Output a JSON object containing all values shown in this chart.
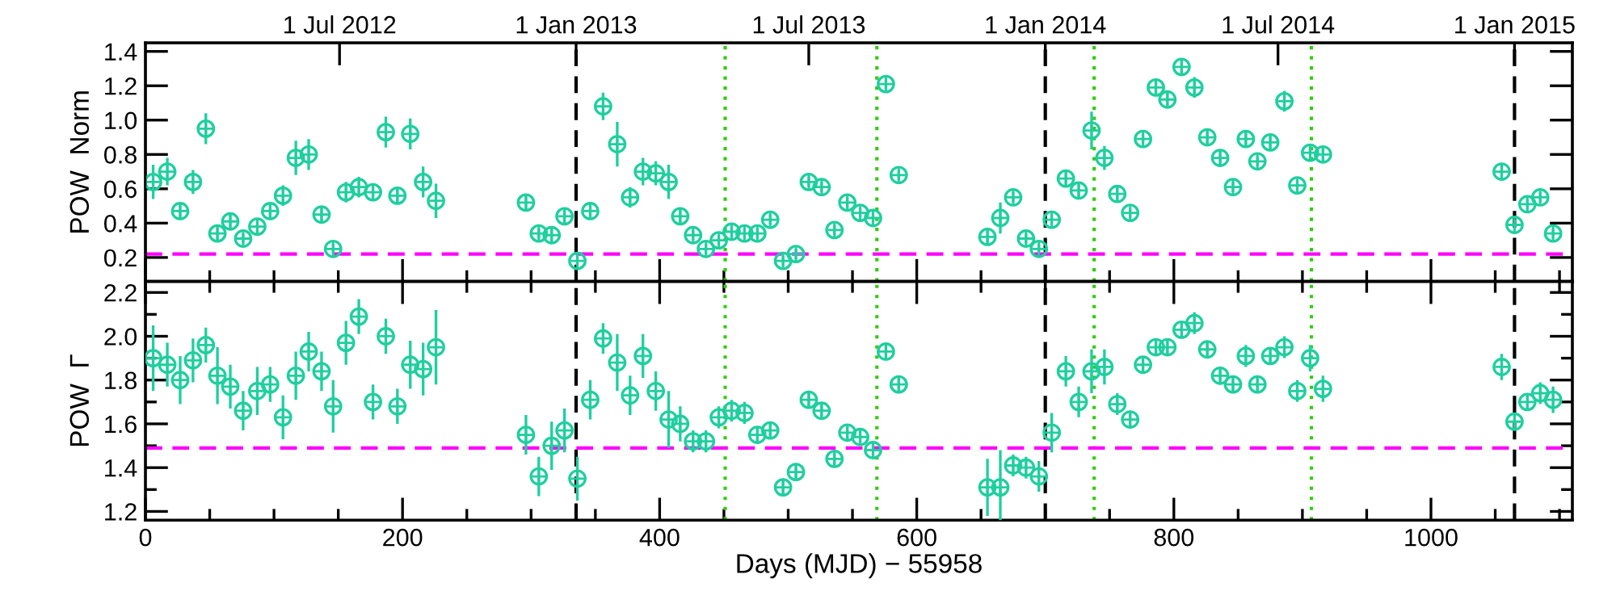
{
  "chart_data": [
    {
      "type": "scatter",
      "ylabel": "POW  Norm",
      "marker": "circle",
      "grid": false,
      "tick_labels": "y",
      "xlim": [
        0,
        1110
      ],
      "xticks": [
        0,
        200,
        400,
        600,
        800,
        1000
      ],
      "x2lim": [
        "2012-02-01",
        "2015-02-15"
      ],
      "x2ticks": [
        {
          "value": "2012-07-01",
          "label": "1 Jul 2012"
        },
        {
          "value": "2013-01-01",
          "label": "1 Jan 2013"
        },
        {
          "value": "2013-07-01",
          "label": "1 Jul 2013"
        },
        {
          "value": "2014-01-01",
          "label": "1 Jan 2014"
        },
        {
          "value": "2014-07-01",
          "label": "1 Jul 2014"
        },
        {
          "value": "2015-01-01",
          "label": "1 Jan 2015"
        }
      ],
      "ylim": [
        0.06,
        1.45
      ],
      "yticks": [
        0.2,
        0.4,
        0.6,
        0.8,
        {
          "value": 1,
          "label": "1.0"
        },
        1.2,
        1.4
      ],
      "ref_lines": [
        {
          "axis": "x",
          "value": 335,
          "color": "#000000",
          "line_style": "dashed"
        },
        {
          "axis": "x",
          "value": 700,
          "color": "#000000",
          "line_style": "dashed"
        },
        {
          "axis": "x",
          "value": 1065,
          "color": "#000000",
          "line_style": "dashed"
        },
        {
          "axis": "x",
          "value": 451,
          "color": "#33cc11",
          "line_style": "dotted"
        },
        {
          "axis": "x",
          "value": 569,
          "color": "#33cc11",
          "line_style": "dotted"
        },
        {
          "axis": "x",
          "value": 738,
          "color": "#33cc11",
          "line_style": "dotted"
        },
        {
          "axis": "x",
          "value": 907,
          "color": "#33cc11",
          "line_style": "dotted"
        },
        {
          "axis": "y",
          "value": 0.22,
          "color": "#ff00ff",
          "line_style": "dashed"
        }
      ],
      "series": [
        {
          "color": "#1fcf9f",
          "x": [
            6,
            17,
            27,
            37,
            47,
            56,
            66,
            76,
            87,
            97,
            107,
            117,
            127,
            137,
            146,
            156,
            166,
            177,
            187,
            196,
            206,
            216,
            226,
            296,
            306,
            316,
            326,
            336,
            346,
            356,
            367,
            377,
            387,
            397,
            407,
            416,
            426,
            436,
            446,
            456,
            466,
            476,
            486,
            496,
            506,
            516,
            526,
            536,
            546,
            556,
            566,
            576,
            586,
            655,
            665,
            675,
            685,
            695,
            705,
            716,
            726,
            736,
            746,
            756,
            766,
            776,
            786,
            795,
            806,
            816,
            826,
            836,
            846,
            856,
            865,
            875,
            886,
            896,
            906,
            916,
            1055,
            1065,
            1075,
            1085,
            1095
          ],
          "values": [
            0.64,
            0.7,
            0.47,
            0.64,
            0.95,
            0.34,
            0.41,
            0.31,
            0.38,
            0.47,
            0.56,
            0.78,
            0.8,
            0.45,
            0.25,
            0.58,
            0.61,
            0.58,
            0.93,
            0.56,
            0.92,
            0.64,
            0.53,
            0.52,
            0.34,
            0.33,
            0.44,
            0.18,
            0.47,
            1.08,
            0.86,
            0.55,
            0.7,
            0.69,
            0.64,
            0.44,
            0.33,
            0.25,
            0.3,
            0.35,
            0.34,
            0.34,
            0.42,
            0.18,
            0.22,
            0.64,
            0.61,
            0.36,
            0.52,
            0.46,
            0.43,
            1.21,
            0.68,
            0.32,
            0.43,
            0.55,
            0.31,
            0.25,
            0.42,
            0.66,
            0.59,
            0.94,
            0.78,
            0.57,
            0.46,
            0.89,
            1.19,
            1.12,
            1.31,
            1.19,
            0.9,
            0.78,
            0.61,
            0.89,
            0.76,
            0.87,
            1.11,
            0.62,
            0.81,
            0.8,
            0.7,
            0.39,
            0.51,
            0.55,
            0.34
          ],
          "errors": [
            0.1,
            0.08,
            0.05,
            0.07,
            0.09,
            0.04,
            0.04,
            0.03,
            0.04,
            0.04,
            0.06,
            0.1,
            0.09,
            0.04,
            0.03,
            0.06,
            0.06,
            0.05,
            0.09,
            0.05,
            0.09,
            0.09,
            0.1,
            0.05,
            0.03,
            0.04,
            0.05,
            0.03,
            0.05,
            0.08,
            0.13,
            0.06,
            0.08,
            0.07,
            0.1,
            0.04,
            0.03,
            0.03,
            0.03,
            0.03,
            0.03,
            0.03,
            0.03,
            0.03,
            0.03,
            0.03,
            0.03,
            0.03,
            0.03,
            0.03,
            0.03,
            0.03,
            0.03,
            0.05,
            0.09,
            0.03,
            0.03,
            0.03,
            0.03,
            0.05,
            0.04,
            0.11,
            0.07,
            0.04,
            0.03,
            0.03,
            0.04,
            0.04,
            0.05,
            0.06,
            0.04,
            0.04,
            0.03,
            0.05,
            0.03,
            0.04,
            0.06,
            0.03,
            0.04,
            0.04,
            0.04,
            0.03,
            0.03,
            0.03,
            0.03
          ]
        }
      ]
    },
    {
      "type": "scatter",
      "ylabel": "POW  Γ",
      "xlabel": "Days (MJD) − 55958",
      "marker": "circle",
      "grid": false,
      "xlim": [
        0,
        1110
      ],
      "xticks": [
        0,
        200,
        400,
        600,
        800,
        1000
      ],
      "ylim": [
        1.16,
        2.25
      ],
      "yticks": [
        1.2,
        1.4,
        1.6,
        1.8,
        {
          "value": 2,
          "label": "2.0"
        },
        2.2
      ],
      "ref_lines": [
        {
          "axis": "x",
          "value": 335,
          "color": "#000000",
          "line_style": "dashed"
        },
        {
          "axis": "x",
          "value": 700,
          "color": "#000000",
          "line_style": "dashed"
        },
        {
          "axis": "x",
          "value": 1065,
          "color": "#000000",
          "line_style": "dashed"
        },
        {
          "axis": "x",
          "value": 451,
          "color": "#33cc11",
          "line_style": "dotted"
        },
        {
          "axis": "x",
          "value": 569,
          "color": "#33cc11",
          "line_style": "dotted"
        },
        {
          "axis": "x",
          "value": 738,
          "color": "#33cc11",
          "line_style": "dotted"
        },
        {
          "axis": "x",
          "value": 907,
          "color": "#33cc11",
          "line_style": "dotted"
        },
        {
          "axis": "y",
          "value": 1.49,
          "color": "#ff00ff",
          "line_style": "dashed"
        }
      ],
      "series": [
        {
          "color": "#1fcf9f",
          "x": [
            6,
            17,
            27,
            37,
            47,
            56,
            66,
            76,
            87,
            97,
            107,
            117,
            127,
            137,
            146,
            156,
            166,
            177,
            187,
            196,
            206,
            216,
            226,
            296,
            306,
            316,
            326,
            336,
            346,
            356,
            367,
            377,
            387,
            397,
            407,
            416,
            426,
            436,
            446,
            456,
            466,
            476,
            486,
            496,
            506,
            516,
            526,
            536,
            546,
            556,
            566,
            576,
            586,
            655,
            665,
            675,
            685,
            695,
            705,
            716,
            726,
            736,
            746,
            756,
            766,
            776,
            786,
            795,
            806,
            816,
            826,
            836,
            846,
            856,
            865,
            875,
            886,
            896,
            906,
            916,
            1055,
            1065,
            1075,
            1085,
            1095
          ],
          "values": [
            1.9,
            1.87,
            1.8,
            1.89,
            1.96,
            1.82,
            1.77,
            1.66,
            1.75,
            1.78,
            1.63,
            1.82,
            1.93,
            1.84,
            1.68,
            1.97,
            2.09,
            1.7,
            2.0,
            1.68,
            1.87,
            1.85,
            1.95,
            1.55,
            1.36,
            1.5,
            1.57,
            1.35,
            1.71,
            1.99,
            1.88,
            1.73,
            1.91,
            1.75,
            1.62,
            1.6,
            1.52,
            1.52,
            1.63,
            1.66,
            1.65,
            1.55,
            1.57,
            1.31,
            1.38,
            1.71,
            1.66,
            1.44,
            1.56,
            1.54,
            1.48,
            1.93,
            1.78,
            1.31,
            1.31,
            1.41,
            1.4,
            1.36,
            1.56,
            1.84,
            1.7,
            1.84,
            1.86,
            1.69,
            1.62,
            1.87,
            1.95,
            1.95,
            2.03,
            2.06,
            1.94,
            1.82,
            1.78,
            1.91,
            1.78,
            1.91,
            1.95,
            1.75,
            1.9,
            1.76,
            1.86,
            1.61,
            1.7,
            1.74,
            1.71
          ],
          "errors": [
            0.15,
            0.1,
            0.11,
            0.1,
            0.08,
            0.13,
            0.1,
            0.09,
            0.11,
            0.08,
            0.1,
            0.11,
            0.09,
            0.09,
            0.12,
            0.1,
            0.08,
            0.08,
            0.08,
            0.08,
            0.11,
            0.12,
            0.17,
            0.09,
            0.09,
            0.11,
            0.1,
            0.1,
            0.09,
            0.07,
            0.13,
            0.09,
            0.1,
            0.09,
            0.13,
            0.08,
            0.05,
            0.05,
            0.05,
            0.05,
            0.05,
            0.04,
            0.03,
            0.04,
            0.04,
            0.03,
            0.03,
            0.03,
            0.03,
            0.03,
            0.04,
            0.03,
            0.04,
            0.13,
            0.17,
            0.05,
            0.05,
            0.07,
            0.09,
            0.07,
            0.07,
            0.1,
            0.08,
            0.05,
            0.04,
            0.03,
            0.03,
            0.03,
            0.03,
            0.05,
            0.04,
            0.04,
            0.04,
            0.05,
            0.04,
            0.04,
            0.05,
            0.05,
            0.06,
            0.06,
            0.06,
            0.04,
            0.04,
            0.05,
            0.06
          ]
        }
      ]
    }
  ]
}
